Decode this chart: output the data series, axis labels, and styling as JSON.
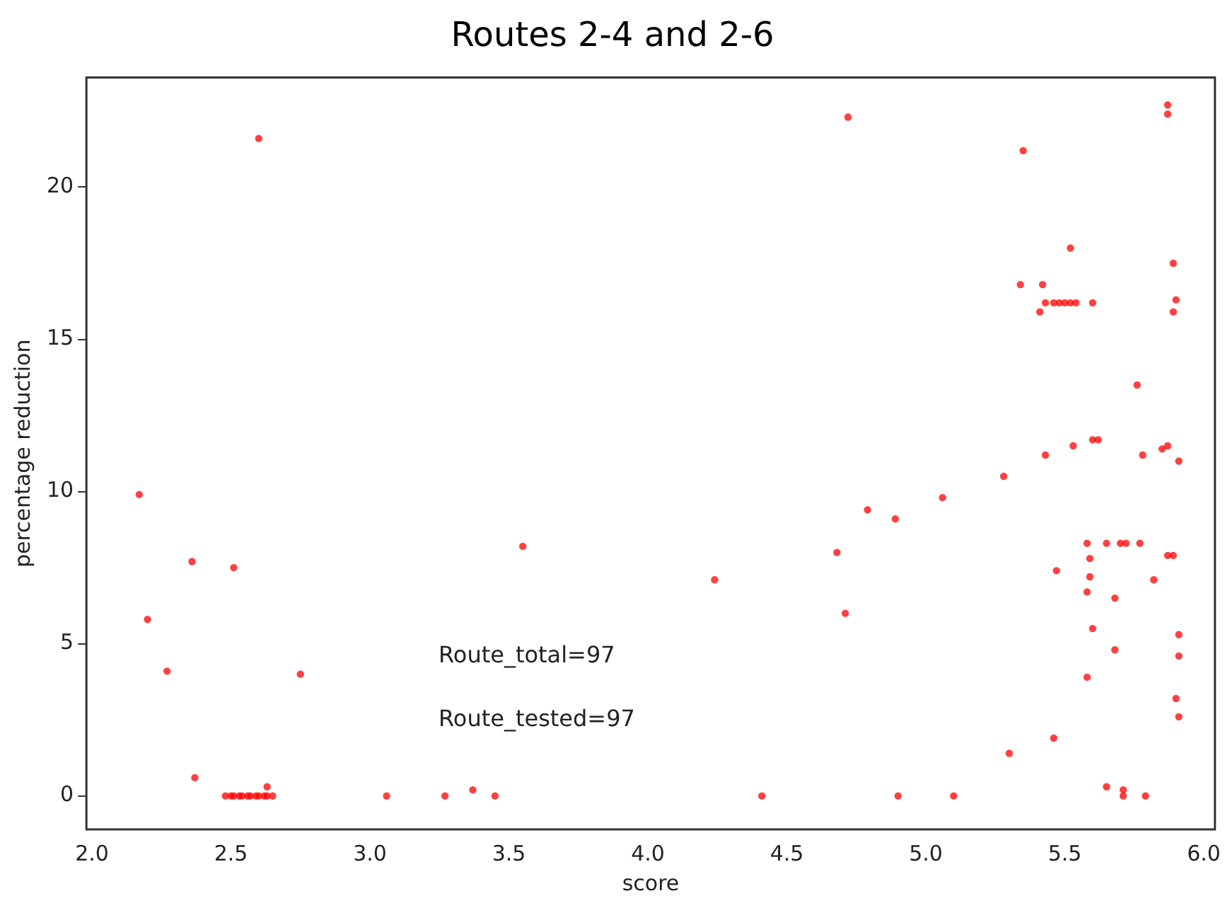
{
  "chart_data": {
    "type": "scatter",
    "title": "Routes 2-4 and 2-6",
    "xlabel": "score",
    "ylabel": "percentage reduction",
    "annotations": [
      "Route_total=97",
      "Route_tested=97"
    ],
    "x": [
      2.6,
      2.17,
      2.36,
      2.51,
      2.2,
      2.27,
      2.75,
      3.55,
      2.37,
      2.48,
      2.5,
      2.51,
      2.53,
      2.54,
      2.56,
      2.57,
      2.59,
      2.6,
      2.62,
      2.63,
      2.65,
      2.63,
      3.06,
      3.27,
      3.37,
      3.45,
      4.72,
      5.35,
      5.87,
      5.87,
      5.52,
      5.89,
      5.34,
      5.42,
      5.43,
      5.46,
      5.48,
      5.5,
      5.52,
      5.54,
      5.41,
      5.6,
      5.89,
      5.9,
      5.76,
      4.24,
      4.68,
      4.71,
      4.79,
      4.89,
      5.06,
      5.28,
      5.43,
      5.53,
      5.6,
      5.62,
      5.78,
      5.85,
      5.87,
      5.91,
      5.58,
      5.65,
      5.7,
      5.72,
      5.77,
      5.87,
      5.89,
      5.59,
      5.47,
      5.59,
      5.82,
      5.58,
      5.68,
      5.6,
      5.91,
      5.68,
      5.91,
      5.58,
      5.9,
      5.91,
      5.46,
      5.3,
      4.41,
      4.9,
      5.1,
      5.65,
      5.71,
      5.71,
      5.79
    ],
    "values": [
      21.6,
      9.9,
      7.7,
      7.5,
      5.8,
      4.1,
      4.0,
      8.2,
      0.6,
      0,
      0,
      0,
      0,
      0,
      0,
      0,
      0,
      0,
      0,
      0.3,
      0,
      0,
      0,
      0,
      0.2,
      0,
      22.3,
      21.2,
      22.4,
      22.7,
      18.0,
      17.5,
      16.8,
      16.8,
      16.2,
      16.2,
      16.2,
      16.2,
      16.2,
      16.2,
      15.9,
      16.2,
      15.9,
      16.3,
      13.5,
      7.1,
      8.0,
      6.0,
      9.4,
      9.1,
      9.8,
      10.5,
      11.2,
      11.5,
      11.7,
      11.7,
      11.2,
      11.4,
      11.5,
      11.0,
      8.3,
      8.3,
      8.3,
      8.3,
      8.3,
      7.9,
      7.9,
      7.8,
      7.4,
      7.2,
      7.1,
      6.7,
      6.5,
      5.5,
      5.3,
      4.8,
      4.6,
      3.9,
      3.2,
      2.6,
      1.9,
      1.4,
      0,
      0,
      0,
      0.3,
      0.2,
      0,
      0
    ],
    "color": "#ff0000",
    "marker": "circle",
    "grid": false,
    "legend": false,
    "xlim": [
      1.98,
      6.04
    ],
    "ylim": [
      -1.1,
      23.6
    ],
    "xticks": [
      {
        "value": 2,
        "label": "2.0"
      },
      {
        "value": 2.5,
        "label": "2.5"
      },
      {
        "value": 3,
        "label": "3.0"
      },
      {
        "value": 3.5,
        "label": "3.5"
      },
      {
        "value": 4,
        "label": "4.0"
      },
      {
        "value": 4.5,
        "label": "4.5"
      },
      {
        "value": 5,
        "label": "5.0"
      },
      {
        "value": 5.5,
        "label": "5.5"
      },
      {
        "value": 6,
        "label": "6.0"
      }
    ],
    "yticks": [
      0,
      5,
      10,
      15,
      20
    ]
  }
}
